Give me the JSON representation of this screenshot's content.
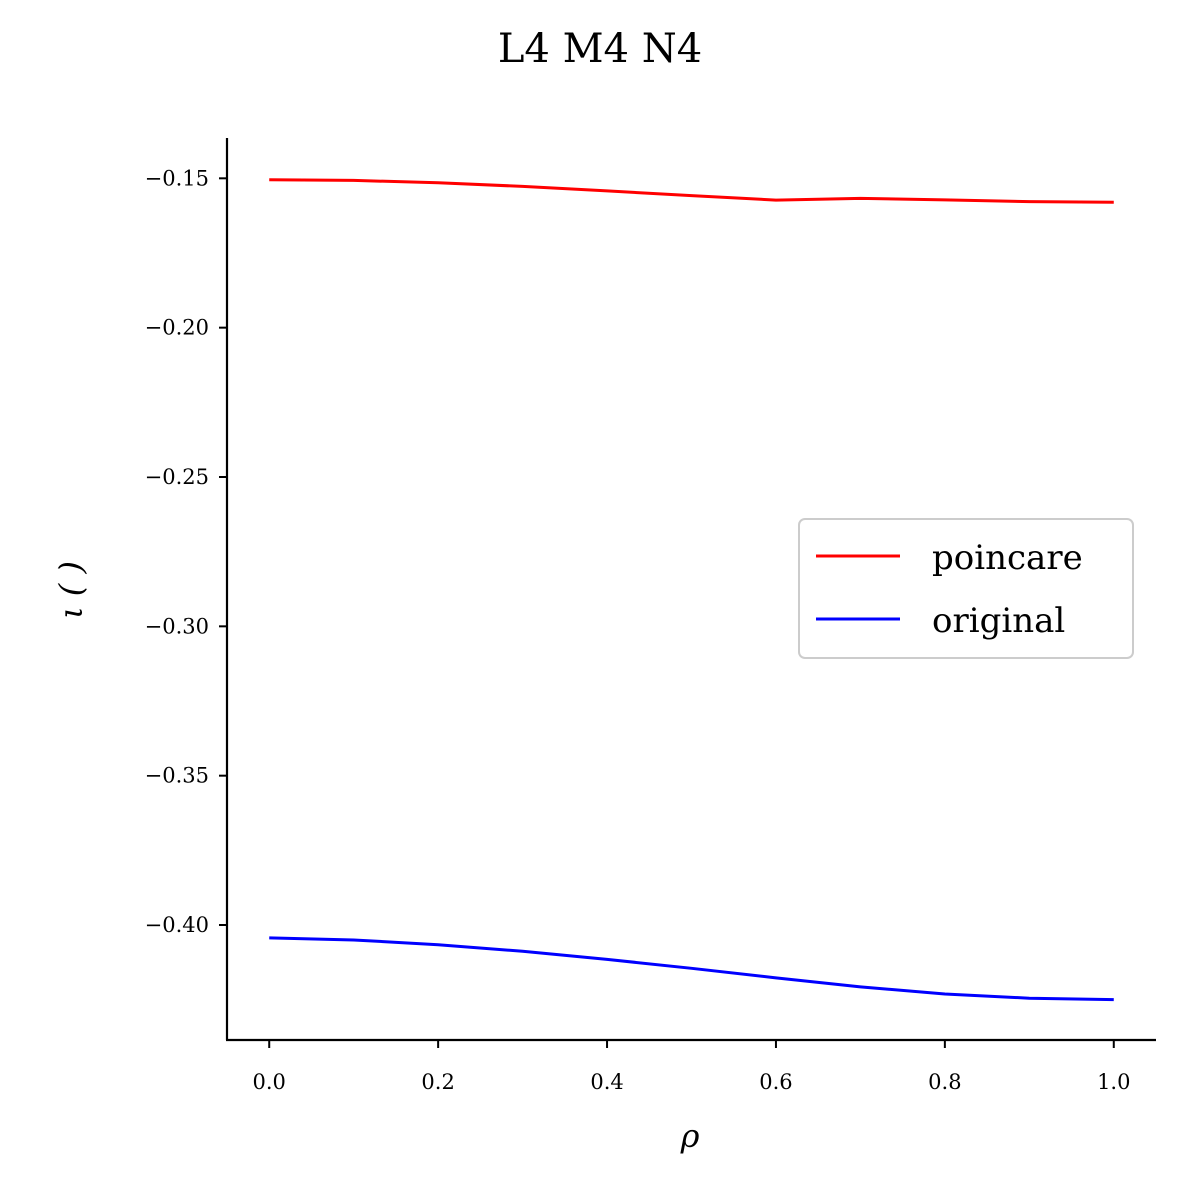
{
  "chart_data": {
    "type": "line",
    "title": "L4 M4 N4",
    "xlabel": "ρ",
    "ylabel": "ι ( )",
    "xlim": [
      -0.05,
      1.05
    ],
    "ylim": [
      -0.4385,
      -0.1365
    ],
    "xticks": [
      0.0,
      0.2,
      0.4,
      0.6,
      0.8,
      1.0
    ],
    "xtick_labels": [
      "0.0",
      "0.2",
      "0.4",
      "0.6",
      "0.8",
      "1.0"
    ],
    "yticks": [
      -0.15,
      -0.2,
      -0.25,
      -0.3,
      -0.35,
      -0.4
    ],
    "ytick_labels": [
      "−0.15",
      "−0.20",
      "−0.25",
      "−0.30",
      "−0.35",
      "−0.40"
    ],
    "grid": false,
    "legend_position": "center-right",
    "x": [
      0.0,
      0.1,
      0.2,
      0.3,
      0.4,
      0.5,
      0.6,
      0.7,
      0.8,
      0.9,
      1.0
    ],
    "series": [
      {
        "name": "poincare",
        "color": "#ff0000",
        "values": [
          -0.1505,
          -0.1507,
          -0.1515,
          -0.1527,
          -0.1542,
          -0.1558,
          -0.1573,
          -0.1567,
          -0.1572,
          -0.1578,
          -0.158
        ]
      },
      {
        "name": "original",
        "color": "#0000ff",
        "values": [
          -0.4043,
          -0.405,
          -0.4066,
          -0.4088,
          -0.4115,
          -0.4145,
          -0.4177,
          -0.4207,
          -0.4231,
          -0.4245,
          -0.425
        ]
      }
    ]
  }
}
